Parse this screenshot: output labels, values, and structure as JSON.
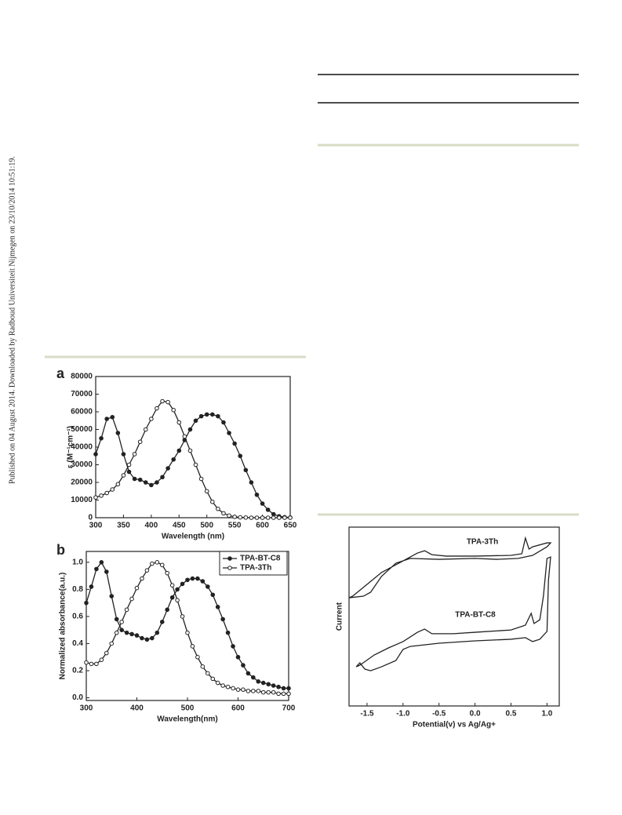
{
  "sidebar": "Published on 04 August 2014. Downloaded by Radboud Universiteit Nijmegen on 23/10/2014 10:51:19.",
  "chart_data": [
    {
      "type": "line",
      "panel_label": "a",
      "x_label": "Wavelength (nm)",
      "y_label": "ε (M⁻¹cm⁻¹)",
      "xlim": [
        300,
        650
      ],
      "xticks": [
        300,
        350,
        400,
        450,
        500,
        550,
        600,
        650
      ],
      "ylim": [
        0,
        80000
      ],
      "yticks": [
        0,
        10000,
        20000,
        30000,
        40000,
        50000,
        60000,
        70000,
        80000
      ],
      "x": [
        300,
        310,
        320,
        330,
        340,
        350,
        360,
        370,
        380,
        390,
        400,
        410,
        420,
        430,
        440,
        450,
        460,
        470,
        480,
        490,
        500,
        510,
        520,
        530,
        540,
        550,
        560,
        570,
        580,
        590,
        600,
        610,
        620,
        630,
        640,
        650
      ],
      "series": [
        {
          "color": "#222222",
          "marker": "filled",
          "values": [
            36000,
            45000,
            56000,
            57000,
            48000,
            36000,
            26000,
            22000,
            21500,
            20000,
            18500,
            20000,
            23000,
            28000,
            33000,
            38000,
            44000,
            50000,
            55000,
            57500,
            58500,
            58500,
            57500,
            54000,
            48000,
            42000,
            35000,
            27000,
            20000,
            13000,
            8000,
            4500,
            2000,
            800,
            300,
            100
          ]
        },
        {
          "color": "#222222",
          "marker": "open",
          "values": [
            11500,
            12500,
            14000,
            16000,
            19000,
            24000,
            30000,
            36000,
            43000,
            50000,
            56000,
            62000,
            66000,
            65500,
            61000,
            54000,
            46000,
            38000,
            30000,
            22000,
            15000,
            9000,
            5000,
            2500,
            1200,
            500,
            200,
            100,
            0,
            0,
            0,
            0,
            0,
            0,
            0,
            0
          ]
        }
      ]
    },
    {
      "type": "line",
      "panel_label": "b",
      "x_label": "Wavelength(nm)",
      "y_label": "Normalized absorbance(a.u.)",
      "xlim": [
        300,
        700
      ],
      "xticks": [
        300,
        400,
        500,
        600,
        700
      ],
      "ylim": [
        -0.02,
        1.08
      ],
      "yticks": [
        {
          "value": 0,
          "label": "0.0"
        },
        0.2,
        0.4,
        0.6,
        0.8,
        {
          "value": 1,
          "label": "1.0"
        }
      ],
      "legend": "upper right",
      "x": [
        300,
        310,
        320,
        330,
        340,
        350,
        360,
        370,
        380,
        390,
        400,
        410,
        420,
        430,
        440,
        450,
        460,
        470,
        480,
        490,
        500,
        510,
        520,
        530,
        540,
        550,
        560,
        570,
        580,
        590,
        600,
        610,
        620,
        630,
        640,
        650,
        660,
        670,
        680,
        690,
        700
      ],
      "series": [
        {
          "name": "TPA-BT-C8",
          "color": "#222222",
          "marker": "filled",
          "values": [
            0.7,
            0.82,
            0.95,
            1.0,
            0.93,
            0.75,
            0.58,
            0.5,
            0.48,
            0.47,
            0.46,
            0.44,
            0.43,
            0.44,
            0.48,
            0.56,
            0.65,
            0.74,
            0.8,
            0.84,
            0.87,
            0.88,
            0.88,
            0.86,
            0.82,
            0.76,
            0.67,
            0.58,
            0.48,
            0.38,
            0.3,
            0.24,
            0.18,
            0.15,
            0.12,
            0.11,
            0.1,
            0.09,
            0.08,
            0.07,
            0.07
          ]
        },
        {
          "name": "TPA-3Th",
          "color": "#222222",
          "marker": "open",
          "values": [
            0.26,
            0.25,
            0.25,
            0.28,
            0.33,
            0.4,
            0.48,
            0.56,
            0.65,
            0.73,
            0.81,
            0.88,
            0.94,
            0.99,
            1.0,
            0.98,
            0.92,
            0.83,
            0.72,
            0.6,
            0.48,
            0.38,
            0.3,
            0.23,
            0.18,
            0.14,
            0.11,
            0.09,
            0.08,
            0.07,
            0.06,
            0.06,
            0.05,
            0.05,
            0.05,
            0.04,
            0.04,
            0.04,
            0.03,
            0.03,
            0.03
          ]
        }
      ]
    },
    {
      "type": "line",
      "x_label": "Potential(v) vs Ag/Ag+",
      "y_label": "Current",
      "xlim": [
        -1.75,
        1.17
      ],
      "xticks": [
        -1.5,
        {
          "value": -1,
          "label": "-1.0"
        },
        -0.5,
        {
          "value": 0,
          "label": "0.0"
        },
        0.5,
        {
          "value": 1,
          "label": "1.0"
        }
      ],
      "ylim": [
        0,
        100
      ],
      "legend": "on-curve",
      "series": [
        {
          "name": "TPA-3Th",
          "color": "#222222",
          "marker": "none",
          "x": [
            -1.7,
            -1.5,
            -1.3,
            -1.0,
            -0.8,
            -0.7,
            -0.6,
            -0.4,
            0,
            0.5,
            0.65,
            0.7,
            0.75,
            0.8,
            1.0,
            1.05,
            1.0,
            0.8,
            0.6,
            0.3,
            0,
            -0.5,
            -0.9,
            -1.1,
            -1.3,
            -1.45,
            -1.55,
            -1.75,
            -1.7
          ],
          "values": [
            61.4,
            68.0,
            74.6,
            81.1,
            85.5,
            86.8,
            84.6,
            83.8,
            83.8,
            84.2,
            85.1,
            93.9,
            87.7,
            89.0,
            91.2,
            91.2,
            89.0,
            84.2,
            82.5,
            82.0,
            82.5,
            82.0,
            82.5,
            79.8,
            72.4,
            63.6,
            61.4,
            60.5,
            61.4
          ]
        },
        {
          "name": "TPA-BT-C8",
          "color": "#222222",
          "marker": "none",
          "x": [
            -1.6,
            -1.4,
            -1.2,
            -1.0,
            -0.8,
            -0.7,
            -0.6,
            -0.3,
            0,
            0.5,
            0.7,
            0.78,
            0.82,
            0.9,
            0.95,
            1.0,
            1.05,
            1.02,
            1.0,
            0.9,
            0.8,
            0.7,
            0.5,
            0,
            -0.5,
            -0.9,
            -1.0,
            -1.1,
            -1.3,
            -1.45,
            -1.53,
            -1.6,
            -1.65,
            -1.6
          ],
          "values": [
            22.8,
            28.5,
            32.5,
            36.0,
            41.2,
            43.0,
            40.4,
            40.4,
            41.2,
            42.5,
            45.2,
            51.8,
            46.1,
            48.2,
            61.4,
            82.5,
            83.3,
            70.2,
            41.7,
            37.3,
            36.0,
            38.2,
            37.3,
            36.4,
            35.1,
            33.3,
            31.6,
            25.4,
            21.9,
            19.7,
            20.6,
            24.1,
            21.9,
            22.8
          ]
        }
      ]
    }
  ]
}
